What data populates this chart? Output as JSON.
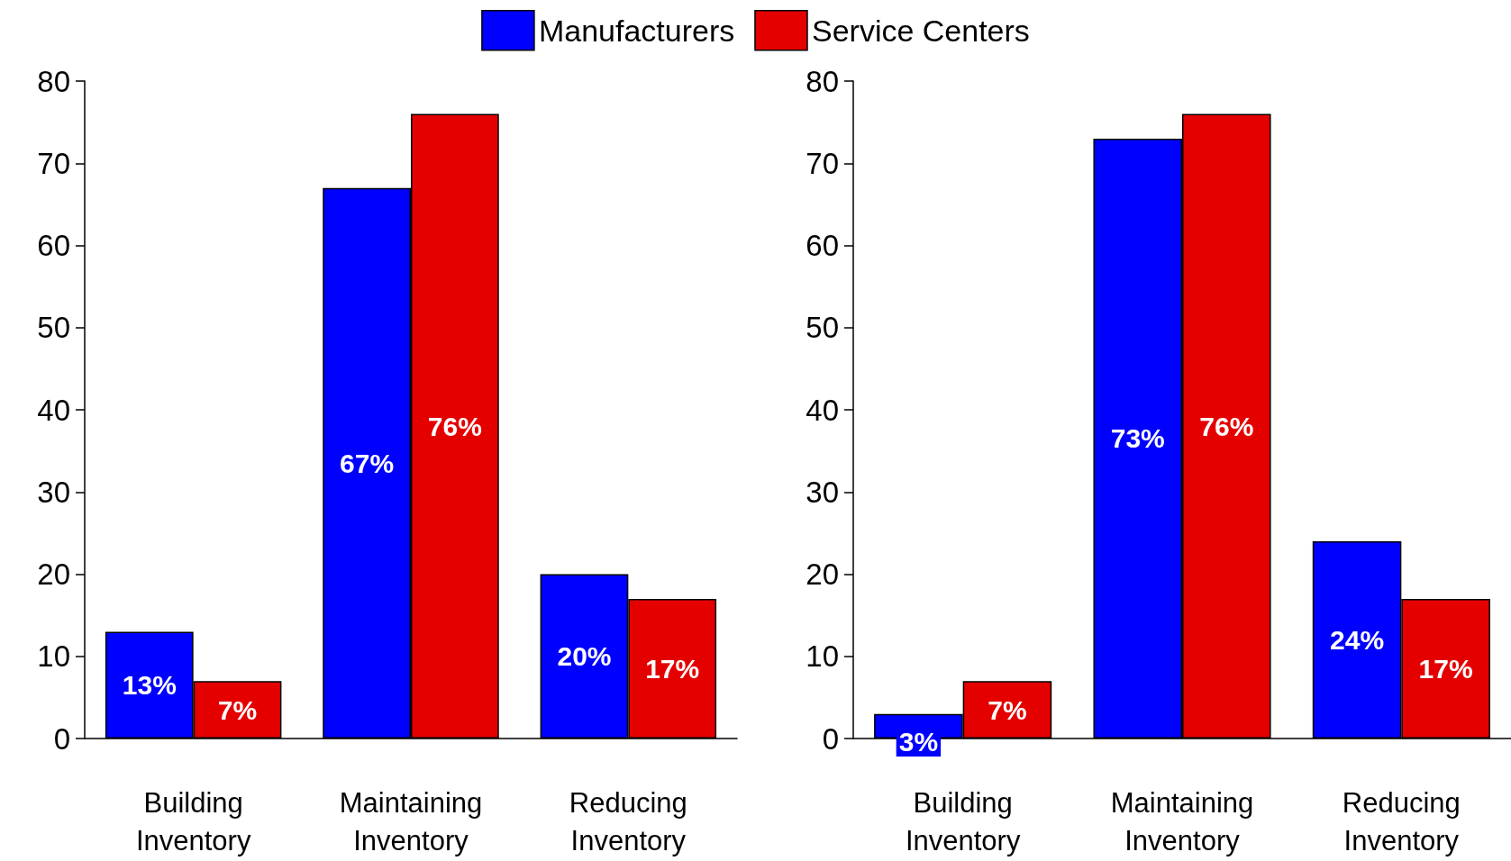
{
  "chart_data": [
    {
      "type": "bar",
      "categories": [
        "Building Inventory",
        "Maintaining Inventory",
        "Reducing Inventory"
      ],
      "series": [
        {
          "name": "Manufacturers",
          "color": "#0000ff",
          "values": [
            13,
            67,
            20
          ],
          "value_labels": [
            "13%",
            "67%",
            "20%"
          ]
        },
        {
          "name": "Service Centers",
          "color": "#e50000",
          "values": [
            7,
            76,
            17
          ],
          "value_labels": [
            "7%",
            "76%",
            "17%"
          ]
        }
      ],
      "ylim": [
        0,
        80
      ],
      "yticks": [
        0,
        10,
        20,
        30,
        40,
        50,
        60,
        70,
        80
      ],
      "grid": false,
      "legend": "top"
    },
    {
      "type": "bar",
      "categories": [
        "Building Inventory",
        "Maintaining Inventory",
        "Reducing Inventory"
      ],
      "series": [
        {
          "color": "#0000ff",
          "values": [
            3,
            73,
            24
          ],
          "value_labels": [
            "3%",
            "73%",
            "24%"
          ]
        },
        {
          "color": "#e50000",
          "values": [
            7,
            76,
            17
          ],
          "value_labels": [
            "7%",
            "76%",
            "17%"
          ]
        }
      ],
      "ylim": [
        0,
        80
      ],
      "yticks": [
        0,
        10,
        20,
        30,
        40,
        50,
        60,
        70,
        80
      ],
      "grid": false
    }
  ]
}
